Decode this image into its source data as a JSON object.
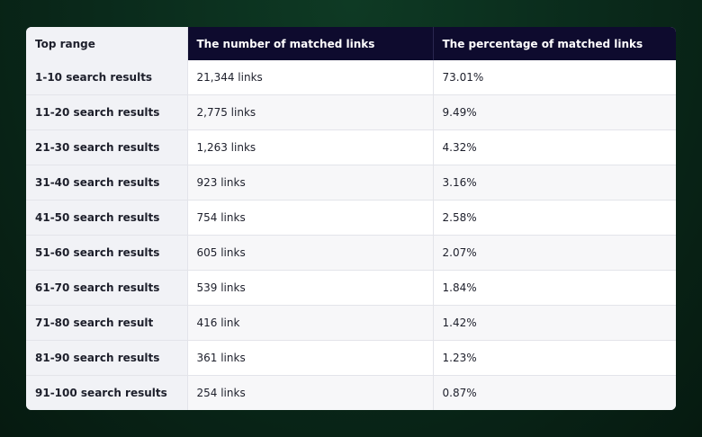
{
  "table": {
    "header": [
      "Top range",
      "The number of matched links",
      "The percentage of matched links"
    ],
    "rows": [
      [
        "1-10 search results",
        "21,344 links",
        "73.01%"
      ],
      [
        "11-20 search results",
        "2,775 links",
        "9.49%"
      ],
      [
        "21-30 search results",
        "1,263 links",
        "4.32%"
      ],
      [
        "31-40 search results",
        "923 links",
        "3.16%"
      ],
      [
        "41-50 search results",
        "754 links",
        "2.58%"
      ],
      [
        "51-60 search results",
        "605 links",
        "2.07%"
      ],
      [
        "61-70 search results",
        "539 links",
        "1.84%"
      ],
      [
        "71-80 search result",
        "416 link",
        "1.42%"
      ],
      [
        "81-90 search results",
        "361 links",
        "1.23%"
      ],
      [
        "91-100 search results",
        "254 links",
        "0.87%"
      ]
    ]
  }
}
